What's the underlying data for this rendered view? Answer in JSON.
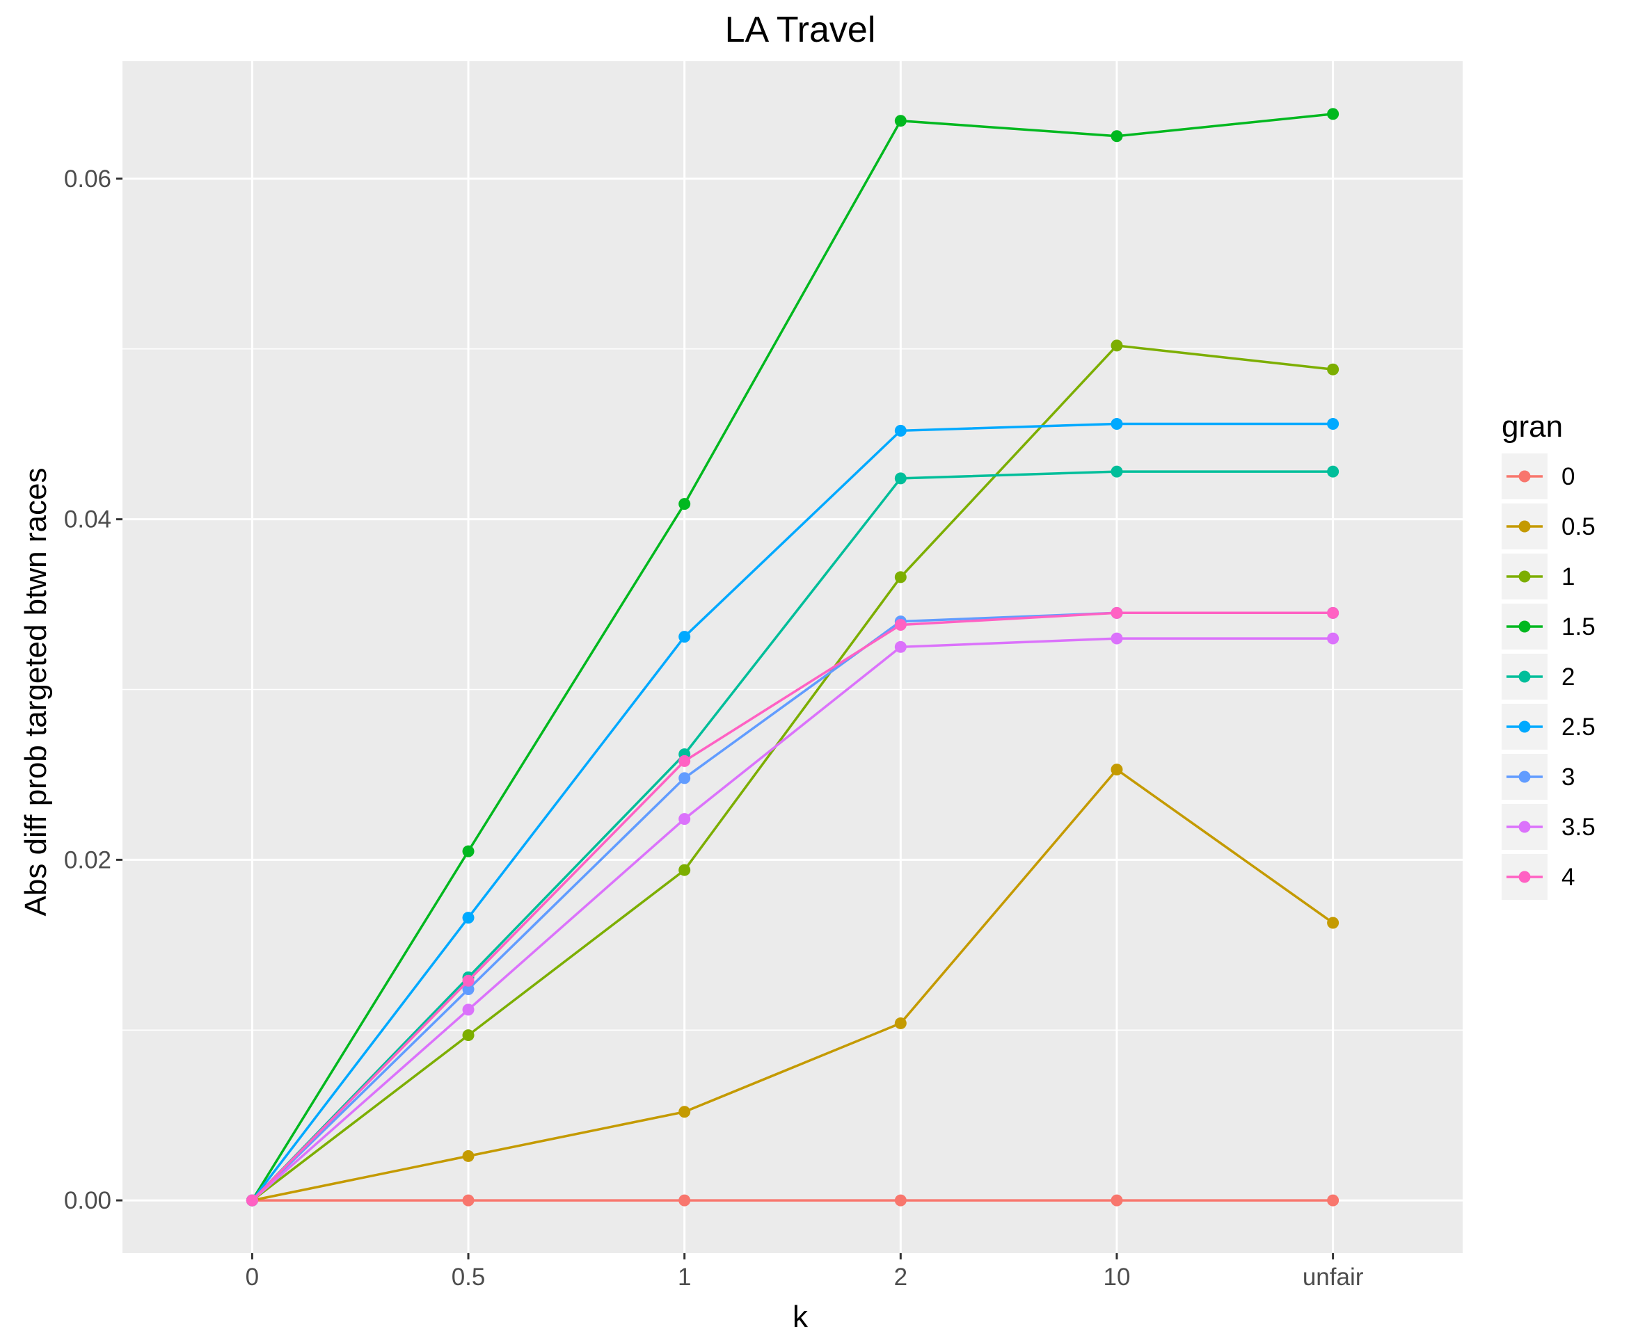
{
  "chart_data": {
    "type": "line",
    "title": "LA Travel",
    "xlabel": "k",
    "ylabel": "Abs diff prob targeted btwn races",
    "categories": [
      "0",
      "0.5",
      "1",
      "2",
      "10",
      "unfair"
    ],
    "y_ticks": [
      0.0,
      0.02,
      0.04,
      0.06
    ],
    "y_tick_labels": [
      "0.00",
      "0.02",
      "0.04",
      "0.06"
    ],
    "ylim": [
      -0.0031,
      0.0669
    ],
    "grid": true,
    "legend": {
      "title": "gran",
      "position": "right"
    },
    "series": [
      {
        "name": "0",
        "color": "#F8766D",
        "values": [
          0,
          0.0,
          0.0,
          0.0,
          0.0,
          0.0
        ]
      },
      {
        "name": "0.5",
        "color": "#C49A00",
        "values": [
          0,
          0.0026,
          0.0052,
          0.0104,
          0.0253,
          0.0163
        ]
      },
      {
        "name": "1",
        "color": "#7CAE00",
        "values": [
          0,
          0.0097,
          0.0194,
          0.0366,
          0.0502,
          0.0488
        ]
      },
      {
        "name": "1.5",
        "color": "#00B81F",
        "values": [
          0,
          0.0205,
          0.0409,
          0.0634,
          0.0625,
          0.0638
        ]
      },
      {
        "name": "2",
        "color": "#00BE9A",
        "values": [
          0,
          0.0131,
          0.0262,
          0.0424,
          0.0428,
          0.0428
        ]
      },
      {
        "name": "2.5",
        "color": "#00A9FF",
        "values": [
          0,
          0.0166,
          0.0331,
          0.0452,
          0.0456,
          0.0456
        ]
      },
      {
        "name": "3",
        "color": "#619CFF",
        "values": [
          0,
          0.0124,
          0.0248,
          0.034,
          0.0345,
          0.0345
        ]
      },
      {
        "name": "3.5",
        "color": "#DB72FB",
        "values": [
          0,
          0.0112,
          0.0224,
          0.0325,
          0.033,
          0.033
        ]
      },
      {
        "name": "4",
        "color": "#FF61C3",
        "values": [
          0,
          0.0129,
          0.0258,
          0.0338,
          0.0345,
          0.0345
        ]
      }
    ]
  }
}
